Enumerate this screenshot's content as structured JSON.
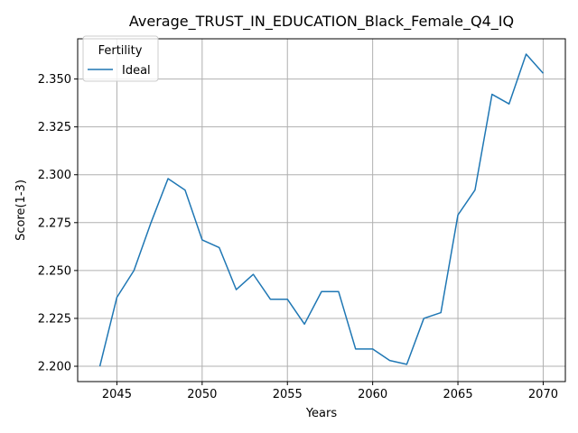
{
  "chart_data": {
    "type": "line",
    "title": "Average_TRUST_IN_EDUCATION_Black_Female_Q4_IQ",
    "xlabel": "Years",
    "ylabel": "Score(1-3)",
    "x": [
      2044,
      2045,
      2046,
      2047,
      2048,
      2049,
      2050,
      2051,
      2052,
      2053,
      2054,
      2055,
      2056,
      2057,
      2058,
      2059,
      2060,
      2061,
      2062,
      2063,
      2064,
      2065,
      2066,
      2067,
      2068,
      2069,
      2070
    ],
    "series": [
      {
        "name": "Ideal",
        "color": "#1f77b4",
        "values": [
          2.2,
          2.236,
          2.25,
          2.275,
          2.298,
          2.292,
          2.266,
          2.262,
          2.24,
          2.248,
          2.235,
          2.235,
          2.222,
          2.239,
          2.239,
          2.209,
          2.209,
          2.203,
          2.201,
          2.225,
          2.228,
          2.279,
          2.292,
          2.342,
          2.337,
          2.363,
          2.353
        ]
      }
    ],
    "xlim": [
      2042.7,
      2071.3
    ],
    "ylim": [
      2.192,
      2.371
    ],
    "xticks": [
      2045,
      2050,
      2055,
      2060,
      2065,
      2070
    ],
    "yticks": [
      2.2,
      2.225,
      2.25,
      2.275,
      2.3,
      2.325,
      2.35
    ],
    "ytick_labels": [
      "2.200",
      "2.225",
      "2.250",
      "2.275",
      "2.300",
      "2.325",
      "2.350"
    ],
    "grid": true,
    "legend": {
      "title": "Fertility",
      "position": "top-left"
    }
  }
}
